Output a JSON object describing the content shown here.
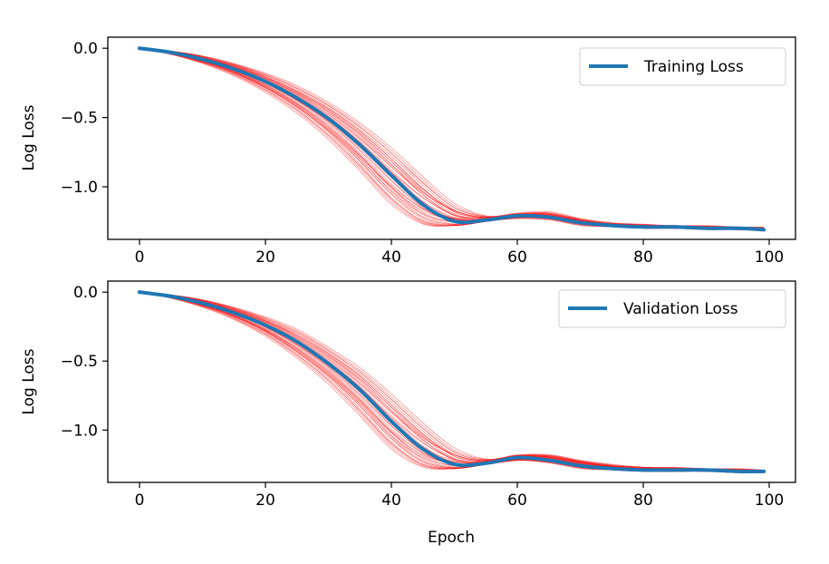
{
  "colors": {
    "mean": "#1f77b4",
    "runs": "#ff0000"
  },
  "x_tick_labels": [
    "0",
    "20",
    "40",
    "60",
    "80",
    "100"
  ],
  "y_tick_labels": [
    "0.0",
    "−0.5",
    "−1.0"
  ],
  "chart_data": [
    {
      "type": "line",
      "title": "",
      "xlabel": "",
      "ylabel": "Log Loss",
      "xlim": [
        -5,
        104
      ],
      "ylim": [
        -1.38,
        0.08
      ],
      "grid": false,
      "legend_position": "top-right",
      "x_ticks": [
        0,
        20,
        40,
        60,
        80,
        100
      ],
      "y_ticks": [
        0.0,
        -0.5,
        -1.0
      ],
      "series": [
        {
          "name": "Training Loss",
          "role": "mean",
          "x": [
            0,
            5,
            10,
            15,
            20,
            25,
            30,
            35,
            40,
            45,
            50,
            55,
            60,
            65,
            70,
            75,
            80,
            85,
            90,
            95,
            99
          ],
          "y": [
            0.0,
            -0.03,
            -0.08,
            -0.15,
            -0.24,
            -0.36,
            -0.51,
            -0.7,
            -0.92,
            -1.13,
            -1.25,
            -1.24,
            -1.21,
            -1.22,
            -1.26,
            -1.28,
            -1.29,
            -1.29,
            -1.3,
            -1.3,
            -1.31
          ]
        },
        {
          "role": "run",
          "x": [
            0,
            5,
            10,
            15,
            20,
            25,
            30,
            35,
            40,
            45,
            50,
            55,
            60,
            65,
            70,
            75,
            80,
            85,
            90,
            95,
            99
          ],
          "y": [
            0.0,
            -0.04,
            -0.1,
            -0.18,
            -0.29,
            -0.43,
            -0.61,
            -0.84,
            -1.08,
            -1.25,
            -1.28,
            -1.25,
            -1.22,
            -1.23,
            -1.27,
            -1.29,
            -1.3,
            -1.3,
            -1.3,
            -1.31,
            -1.31
          ]
        },
        {
          "role": "run",
          "x": [
            0,
            5,
            10,
            15,
            20,
            25,
            30,
            35,
            40,
            45,
            50,
            55,
            60,
            65,
            70,
            75,
            80,
            85,
            90,
            95,
            99
          ],
          "y": [
            0.0,
            -0.02,
            -0.06,
            -0.12,
            -0.2,
            -0.3,
            -0.43,
            -0.59,
            -0.78,
            -0.99,
            -1.17,
            -1.22,
            -1.2,
            -1.2,
            -1.24,
            -1.27,
            -1.28,
            -1.28,
            -1.29,
            -1.29,
            -1.3
          ]
        },
        {
          "role": "run",
          "x": [
            0,
            5,
            10,
            15,
            20,
            25,
            30,
            35,
            40,
            45,
            50,
            55,
            60,
            65,
            70,
            75,
            80,
            85,
            90,
            95,
            99
          ],
          "y": [
            0.0,
            -0.035,
            -0.09,
            -0.165,
            -0.265,
            -0.4,
            -0.57,
            -0.78,
            -1.01,
            -1.2,
            -1.27,
            -1.25,
            -1.22,
            -1.22,
            -1.26,
            -1.28,
            -1.29,
            -1.3,
            -1.3,
            -1.31,
            -1.31
          ]
        },
        {
          "role": "run",
          "x": [
            0,
            5,
            10,
            15,
            20,
            25,
            30,
            35,
            40,
            45,
            50,
            55,
            60,
            65,
            70,
            75,
            80,
            85,
            90,
            95,
            99
          ],
          "y": [
            0.0,
            -0.025,
            -0.07,
            -0.135,
            -0.22,
            -0.33,
            -0.46,
            -0.63,
            -0.84,
            -1.06,
            -1.21,
            -1.23,
            -1.2,
            -1.21,
            -1.25,
            -1.27,
            -1.28,
            -1.29,
            -1.29,
            -1.3,
            -1.3
          ]
        },
        {
          "role": "run",
          "x": [
            0,
            5,
            10,
            15,
            20,
            25,
            30,
            35,
            40,
            45,
            50,
            55,
            60,
            65,
            70,
            75,
            80,
            85,
            90,
            95,
            99
          ],
          "y": [
            0.0,
            -0.045,
            -0.11,
            -0.2,
            -0.32,
            -0.47,
            -0.66,
            -0.89,
            -1.13,
            -1.27,
            -1.28,
            -1.25,
            -1.23,
            -1.24,
            -1.28,
            -1.29,
            -1.3,
            -1.3,
            -1.31,
            -1.31,
            -1.32
          ]
        },
        {
          "role": "run",
          "x": [
            0,
            5,
            10,
            15,
            20,
            25,
            30,
            35,
            40,
            45,
            50,
            55,
            60,
            65,
            70,
            75,
            80,
            85,
            90,
            95,
            99
          ],
          "y": [
            0.0,
            -0.02,
            -0.055,
            -0.11,
            -0.18,
            -0.27,
            -0.39,
            -0.54,
            -0.72,
            -0.93,
            -1.12,
            -1.21,
            -1.19,
            -1.18,
            -1.23,
            -1.26,
            -1.27,
            -1.28,
            -1.28,
            -1.29,
            -1.29
          ]
        }
      ]
    },
    {
      "type": "line",
      "title": "",
      "xlabel": "Epoch",
      "ylabel": "Log Loss",
      "xlim": [
        -5,
        104
      ],
      "ylim": [
        -1.38,
        0.08
      ],
      "grid": false,
      "legend_position": "top-right",
      "x_ticks": [
        0,
        20,
        40,
        60,
        80,
        100
      ],
      "y_ticks": [
        0.0,
        -0.5,
        -1.0
      ],
      "series": [
        {
          "name": "Validation Loss",
          "role": "mean",
          "x": [
            0,
            5,
            10,
            15,
            20,
            25,
            30,
            35,
            40,
            45,
            50,
            55,
            60,
            65,
            70,
            75,
            80,
            85,
            90,
            95,
            99
          ],
          "y": [
            0.0,
            -0.03,
            -0.08,
            -0.15,
            -0.24,
            -0.36,
            -0.52,
            -0.71,
            -0.94,
            -1.14,
            -1.25,
            -1.24,
            -1.2,
            -1.22,
            -1.26,
            -1.28,
            -1.29,
            -1.29,
            -1.29,
            -1.3,
            -1.3
          ]
        },
        {
          "role": "run",
          "x": [
            0,
            5,
            10,
            15,
            20,
            25,
            30,
            35,
            40,
            45,
            50,
            55,
            60,
            65,
            70,
            75,
            80,
            85,
            90,
            95,
            99
          ],
          "y": [
            0.0,
            -0.04,
            -0.1,
            -0.18,
            -0.29,
            -0.44,
            -0.62,
            -0.85,
            -1.09,
            -1.25,
            -1.28,
            -1.25,
            -1.22,
            -1.23,
            -1.27,
            -1.29,
            -1.3,
            -1.3,
            -1.3,
            -1.31,
            -1.31
          ]
        },
        {
          "role": "run",
          "x": [
            0,
            5,
            10,
            15,
            20,
            25,
            30,
            35,
            40,
            45,
            50,
            55,
            60,
            65,
            70,
            75,
            80,
            85,
            90,
            95,
            99
          ],
          "y": [
            0.0,
            -0.02,
            -0.06,
            -0.12,
            -0.2,
            -0.3,
            -0.44,
            -0.6,
            -0.8,
            -1.01,
            -1.18,
            -1.22,
            -1.19,
            -1.19,
            -1.23,
            -1.26,
            -1.27,
            -1.28,
            -1.28,
            -1.29,
            -1.29
          ]
        },
        {
          "role": "run",
          "x": [
            0,
            5,
            10,
            15,
            20,
            25,
            30,
            35,
            40,
            45,
            50,
            55,
            60,
            65,
            70,
            75,
            80,
            85,
            90,
            95,
            99
          ],
          "y": [
            0.0,
            -0.035,
            -0.09,
            -0.165,
            -0.27,
            -0.41,
            -0.58,
            -0.79,
            -1.02,
            -1.21,
            -1.27,
            -1.25,
            -1.21,
            -1.22,
            -1.26,
            -1.28,
            -1.29,
            -1.29,
            -1.3,
            -1.3,
            -1.31
          ]
        },
        {
          "role": "run",
          "x": [
            0,
            5,
            10,
            15,
            20,
            25,
            30,
            35,
            40,
            45,
            50,
            55,
            60,
            65,
            70,
            75,
            80,
            85,
            90,
            95,
            99
          ],
          "y": [
            0.0,
            -0.025,
            -0.07,
            -0.135,
            -0.22,
            -0.33,
            -0.47,
            -0.64,
            -0.86,
            -1.07,
            -1.22,
            -1.23,
            -1.19,
            -1.2,
            -1.24,
            -1.27,
            -1.28,
            -1.28,
            -1.29,
            -1.29,
            -1.3
          ]
        },
        {
          "role": "run",
          "x": [
            0,
            5,
            10,
            15,
            20,
            25,
            30,
            35,
            40,
            45,
            50,
            55,
            60,
            65,
            70,
            75,
            80,
            85,
            90,
            95,
            99
          ],
          "y": [
            0.0,
            -0.045,
            -0.11,
            -0.2,
            -0.32,
            -0.48,
            -0.67,
            -0.9,
            -1.14,
            -1.27,
            -1.28,
            -1.25,
            -1.22,
            -1.24,
            -1.28,
            -1.29,
            -1.3,
            -1.3,
            -1.3,
            -1.31,
            -1.31
          ]
        },
        {
          "role": "run",
          "x": [
            0,
            5,
            10,
            15,
            20,
            25,
            30,
            35,
            40,
            45,
            50,
            55,
            60,
            65,
            70,
            75,
            80,
            85,
            90,
            95,
            99
          ],
          "y": [
            0.0,
            -0.02,
            -0.055,
            -0.11,
            -0.18,
            -0.27,
            -0.4,
            -0.55,
            -0.74,
            -0.95,
            -1.13,
            -1.21,
            -1.18,
            -1.18,
            -1.22,
            -1.25,
            -1.27,
            -1.27,
            -1.28,
            -1.28,
            -1.29
          ]
        }
      ]
    }
  ]
}
